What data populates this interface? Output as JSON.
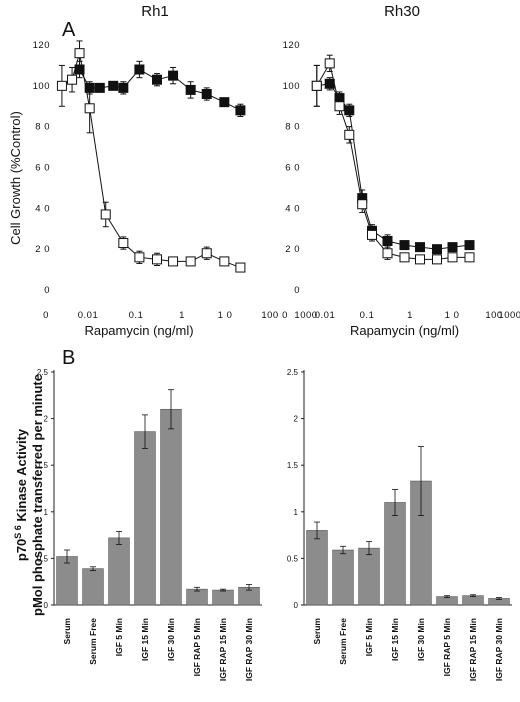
{
  "figure": {
    "panel_a_letter": "A",
    "panel_b_letter": "B",
    "top_y_label": "Cell Growth (%Control)",
    "top_x_label": "Rapamycin (ng/ml)",
    "bottom_y_label_line1": "p70",
    "bottom_y_label_sup": "S 6",
    "bottom_y_label_rest": " Kinase Activity",
    "bottom_y_label_line2": "pMol phosphate transferred per minute"
  },
  "chart_data": [
    {
      "type": "line",
      "title": "Rh1",
      "xlabel": "Rapamycin (ng/ml)",
      "ylabel": "Cell Growth (%Control)",
      "x_scale": "log",
      "xlim": [
        0.001,
        1000
      ],
      "ylim": [
        0,
        120
      ],
      "x_tick_labels": [
        "0",
        "0.01",
        "0.1",
        "1",
        "1 0",
        "100",
        "1000"
      ],
      "y_tick_labels": [
        "0",
        "2 0",
        "4 0",
        "6 0",
        "8 0",
        "100",
        "120"
      ],
      "series": [
        {
          "marker": "filled-square",
          "points": [
            {
              "x": 0.005,
              "y": 108,
              "err": 4
            },
            {
              "x": 0.01,
              "y": 99,
              "err": 3
            },
            {
              "x": 0.02,
              "y": 99,
              "err": 2
            },
            {
              "x": 0.05,
              "y": 100,
              "err": 2
            },
            {
              "x": 0.1,
              "y": 99,
              "err": 3
            },
            {
              "x": 0.3,
              "y": 108,
              "err": 4
            },
            {
              "x": 1,
              "y": 103,
              "err": 3
            },
            {
              "x": 3,
              "y": 105,
              "err": 4
            },
            {
              "x": 10,
              "y": 98,
              "err": 4
            },
            {
              "x": 30,
              "y": 96,
              "err": 3
            },
            {
              "x": 100,
              "y": 92,
              "err": 2
            },
            {
              "x": 300,
              "y": 88,
              "err": 3
            }
          ]
        },
        {
          "marker": "open-square",
          "points": [
            {
              "x": 0.0015,
              "y": 100,
              "err": 10
            },
            {
              "x": 0.003,
              "y": 103,
              "err": 6
            },
            {
              "x": 0.005,
              "y": 116,
              "err": 6
            },
            {
              "x": 0.01,
              "y": 89,
              "err": 12
            },
            {
              "x": 0.03,
              "y": 37,
              "err": 6
            },
            {
              "x": 0.1,
              "y": 23,
              "err": 3
            },
            {
              "x": 0.3,
              "y": 16,
              "err": 3
            },
            {
              "x": 1,
              "y": 15,
              "err": 3
            },
            {
              "x": 3,
              "y": 14,
              "err": 2
            },
            {
              "x": 10,
              "y": 14,
              "err": 2
            },
            {
              "x": 30,
              "y": 18,
              "err": 3
            },
            {
              "x": 100,
              "y": 14,
              "err": 2
            },
            {
              "x": 300,
              "y": 11,
              "err": 2
            }
          ]
        }
      ]
    },
    {
      "type": "line",
      "title": "Rh30",
      "xlabel": "Rapamycin (ng/ml)",
      "ylabel": "",
      "x_scale": "log",
      "xlim": [
        0.001,
        1000
      ],
      "ylim": [
        0,
        120
      ],
      "x_tick_labels": [
        "0",
        "0.01",
        "0.1",
        "1",
        "1 0",
        "100",
        "1000"
      ],
      "y_tick_labels": [
        "0",
        "2 0",
        "4 0",
        "6 0",
        "8 0",
        "100",
        "120"
      ],
      "series": [
        {
          "marker": "filled-square",
          "points": [
            {
              "x": 0.002,
              "y": 100,
              "err": 10
            },
            {
              "x": 0.005,
              "y": 101,
              "err": 3
            },
            {
              "x": 0.01,
              "y": 94,
              "err": 3
            },
            {
              "x": 0.02,
              "y": 88,
              "err": 3
            },
            {
              "x": 0.05,
              "y": 45,
              "err": 4
            },
            {
              "x": 0.1,
              "y": 29,
              "err": 3
            },
            {
              "x": 0.3,
              "y": 24,
              "err": 3
            },
            {
              "x": 1,
              "y": 22,
              "err": 2
            },
            {
              "x": 3,
              "y": 21,
              "err": 2
            },
            {
              "x": 10,
              "y": 20,
              "err": 2
            },
            {
              "x": 30,
              "y": 21,
              "err": 2
            },
            {
              "x": 100,
              "y": 22,
              "err": 2
            }
          ]
        },
        {
          "marker": "open-square",
          "points": [
            {
              "x": 0.002,
              "y": 100,
              "err": 10
            },
            {
              "x": 0.005,
              "y": 111,
              "err": 4
            },
            {
              "x": 0.01,
              "y": 90,
              "err": 4
            },
            {
              "x": 0.02,
              "y": 76,
              "err": 4
            },
            {
              "x": 0.05,
              "y": 42,
              "err": 4
            },
            {
              "x": 0.1,
              "y": 27,
              "err": 3
            },
            {
              "x": 0.3,
              "y": 18,
              "err": 3
            },
            {
              "x": 1,
              "y": 16,
              "err": 2
            },
            {
              "x": 3,
              "y": 15,
              "err": 2
            },
            {
              "x": 10,
              "y": 15,
              "err": 2
            },
            {
              "x": 30,
              "y": 16,
              "err": 2
            },
            {
              "x": 100,
              "y": 16,
              "err": 2
            }
          ]
        }
      ]
    },
    {
      "type": "bar",
      "title": "",
      "xlabel": "",
      "ylabel": "p70S 6 Kinase Activity pMol phosphate transferred per minute",
      "ylim": [
        0,
        2.5
      ],
      "y_tick_labels": [
        "0",
        "0.5",
        "1",
        "1.5",
        "2",
        "2.5"
      ],
      "categories": [
        "Serum",
        "Serum  Free",
        "IGF 5 Min",
        "IGF 15 Min",
        "IGF 30 Min",
        "IGF RAP 5 Min",
        "IGF RAP 15 Min",
        "IGF RAP 30 Min"
      ],
      "values": [
        0.52,
        0.39,
        0.72,
        1.86,
        2.1,
        0.17,
        0.16,
        0.19
      ],
      "errors": [
        0.07,
        0.02,
        0.07,
        0.18,
        0.21,
        0.02,
        0.01,
        0.03
      ]
    },
    {
      "type": "bar",
      "title": "",
      "xlabel": "",
      "ylabel": "",
      "ylim": [
        0,
        2.5
      ],
      "y_tick_labels": [
        "0",
        "0.5",
        "1",
        "1.5",
        "2",
        "2.5"
      ],
      "categories": [
        "Serum",
        "Serum Free",
        "IGF 5 Min",
        "IGF 15 Min",
        "IGF 30 Min",
        "IGF RAP 5 Min",
        "IGF RAP 15 Min",
        "IGF RAP 30 Min"
      ],
      "values": [
        0.8,
        0.59,
        0.61,
        1.1,
        1.33,
        0.09,
        0.1,
        0.07
      ],
      "errors": [
        0.09,
        0.04,
        0.07,
        0.14,
        0.37,
        0.01,
        0.01,
        0.01
      ]
    }
  ]
}
